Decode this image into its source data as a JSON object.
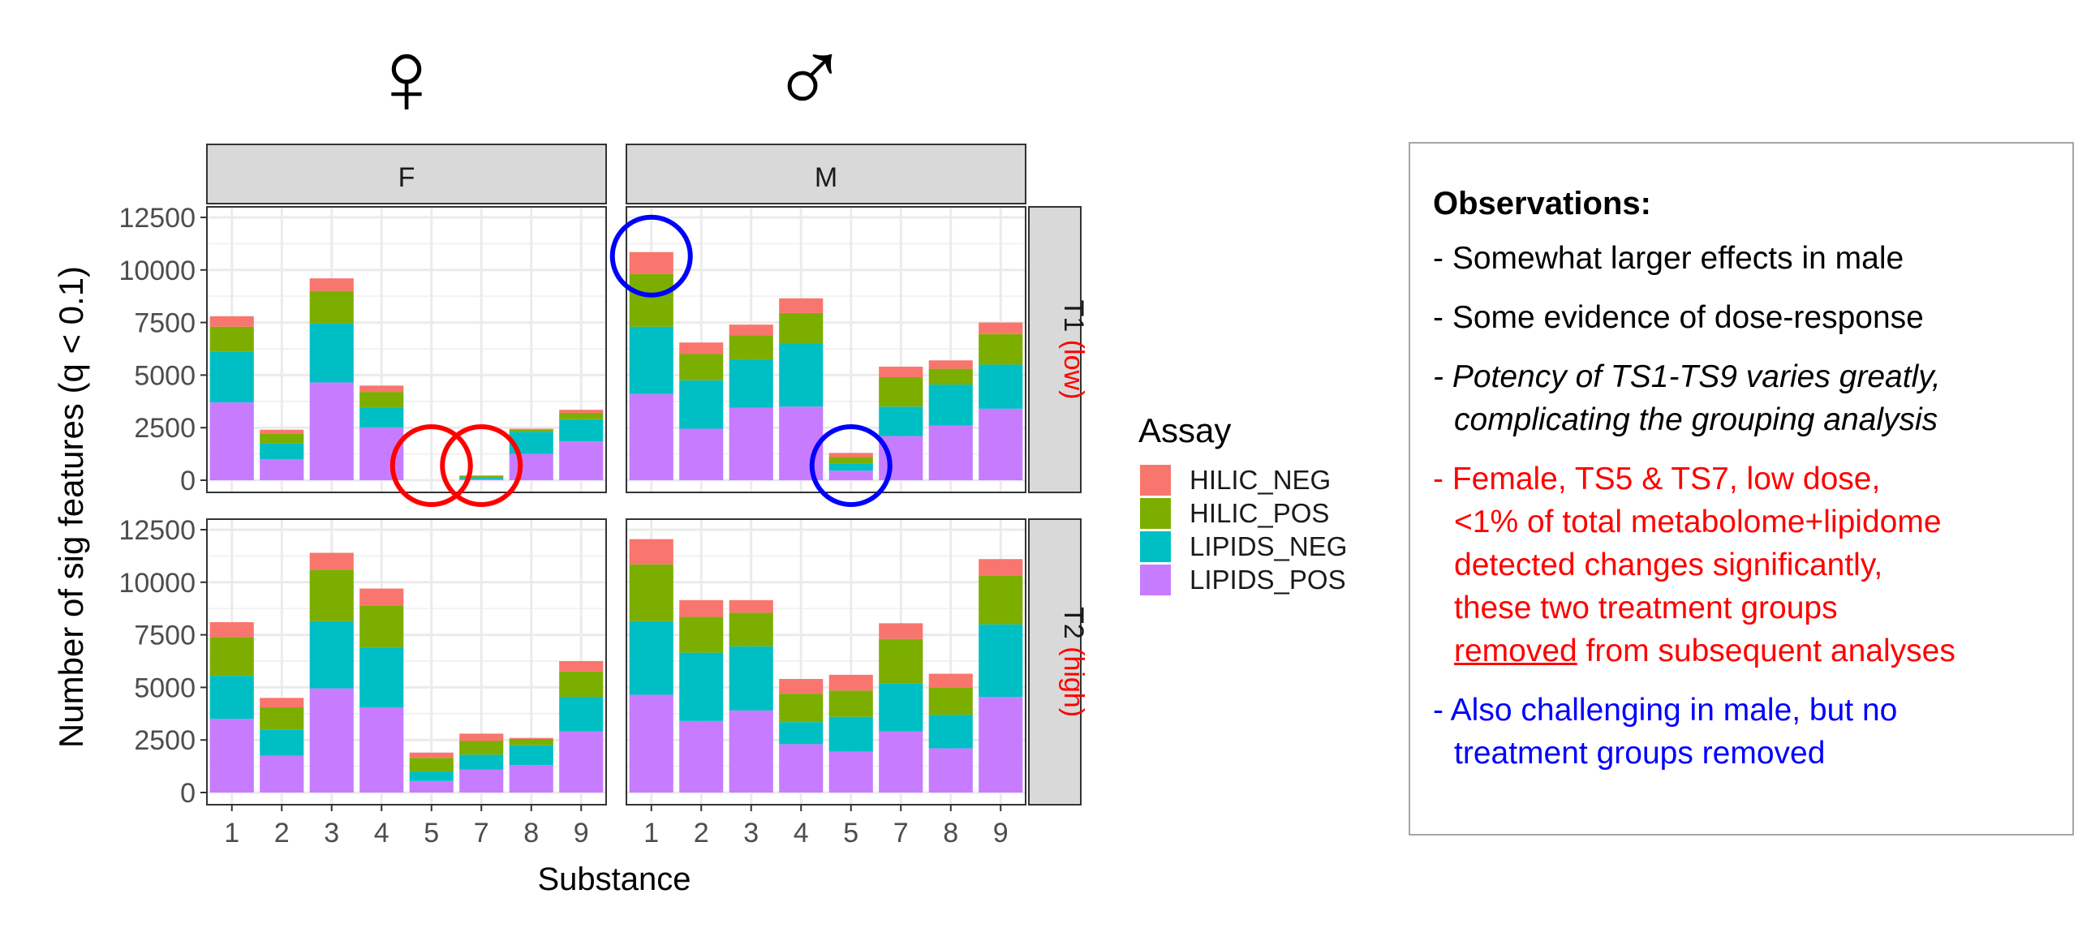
{
  "chart_data": {
    "type": "bar",
    "stacked": true,
    "xlabel": "Substance",
    "ylabel": "Number of sig features (q < 0.1)",
    "ylim": [
      0,
      12500
    ],
    "yticks": [
      "0",
      "2500",
      "5000",
      "7500",
      "10000",
      "12500"
    ],
    "ytick_values": [
      0,
      2500,
      5000,
      7500,
      10000,
      12500
    ],
    "grid": true,
    "legend": {
      "title": "Assay",
      "placement": "right",
      "entries": [
        {
          "label": "HILIC_NEG",
          "color": "#F8766D"
        },
        {
          "label": "HILIC_POS",
          "color": "#7CAE00"
        },
        {
          "label": "LIPIDS_NEG",
          "color": "#00BFC4"
        },
        {
          "label": "LIPIDS_POS",
          "color": "#C77CFF"
        }
      ]
    },
    "stack_order": [
      "LIPIDS_POS",
      "LIPIDS_NEG",
      "HILIC_POS",
      "HILIC_NEG"
    ],
    "column_facets": [
      {
        "strip": "F",
        "symbol": "♀",
        "categories": [
          "1",
          "2",
          "3",
          "4",
          "5",
          "7",
          "8",
          "9"
        ]
      },
      {
        "strip": "M",
        "symbol": "♂",
        "categories": [
          "1",
          "2",
          "3",
          "4",
          "5",
          "7",
          "8",
          "9"
        ]
      }
    ],
    "row_facets": [
      {
        "strip_main": "T1",
        "strip_sub": "(low)"
      },
      {
        "strip_main": "T2",
        "strip_sub": "(high)"
      }
    ],
    "panels": [
      {
        "col": "F",
        "row": "T1",
        "series": [
          {
            "name": "LIPIDS_POS",
            "values": [
              3700,
              1000,
              4650,
              2500,
              0,
              50,
              1250,
              1850
            ]
          },
          {
            "name": "LIPIDS_NEG",
            "values": [
              2400,
              750,
              2800,
              950,
              0,
              70,
              1050,
              1050
            ]
          },
          {
            "name": "HILIC_POS",
            "values": [
              1200,
              450,
              1550,
              750,
              0,
              80,
              100,
              300
            ]
          },
          {
            "name": "HILIC_NEG",
            "values": [
              500,
              200,
              600,
              300,
              0,
              30,
              50,
              150
            ]
          }
        ]
      },
      {
        "col": "M",
        "row": "T1",
        "series": [
          {
            "name": "LIPIDS_POS",
            "values": [
              4100,
              2450,
              3450,
              3500,
              450,
              2100,
              2600,
              3400
            ]
          },
          {
            "name": "LIPIDS_NEG",
            "values": [
              3200,
              2300,
              2300,
              3000,
              350,
              1400,
              1950,
              2100
            ]
          },
          {
            "name": "HILIC_POS",
            "values": [
              2500,
              1250,
              1150,
              1450,
              300,
              1400,
              750,
              1450
            ]
          },
          {
            "name": "HILIC_NEG",
            "values": [
              1050,
              550,
              500,
              700,
              200,
              500,
              400,
              550
            ]
          }
        ]
      },
      {
        "col": "F",
        "row": "T2",
        "series": [
          {
            "name": "LIPIDS_POS",
            "values": [
              3500,
              1750,
              4950,
              4050,
              550,
              1100,
              1300,
              2900
            ]
          },
          {
            "name": "LIPIDS_NEG",
            "values": [
              2050,
              1250,
              3200,
              2850,
              450,
              700,
              950,
              1650
            ]
          },
          {
            "name": "HILIC_POS",
            "values": [
              1850,
              1050,
              2450,
              2000,
              650,
              650,
              300,
              1200
            ]
          },
          {
            "name": "HILIC_NEG",
            "values": [
              700,
              450,
              800,
              800,
              250,
              350,
              50,
              500
            ]
          }
        ]
      },
      {
        "col": "M",
        "row": "T2",
        "series": [
          {
            "name": "LIPIDS_POS",
            "values": [
              4650,
              3400,
              3900,
              2300,
              1950,
              2900,
              2100,
              4550
            ]
          },
          {
            "name": "LIPIDS_NEG",
            "values": [
              3500,
              3250,
              3050,
              1050,
              1650,
              2300,
              1600,
              3450
            ]
          },
          {
            "name": "HILIC_POS",
            "values": [
              2700,
              1700,
              1600,
              1350,
              1250,
              2100,
              1300,
              2300
            ]
          },
          {
            "name": "HILIC_NEG",
            "values": [
              1200,
              800,
              600,
              700,
              750,
              750,
              650,
              800
            ]
          }
        ]
      }
    ],
    "annotations": {
      "circles": [
        {
          "panel": "F-T1",
          "category": "5",
          "color": "#ff0000"
        },
        {
          "panel": "F-T1",
          "category": "7",
          "color": "#ff0000"
        },
        {
          "panel": "M-T1",
          "category": "1",
          "color": "#0000ff"
        },
        {
          "panel": "M-T1",
          "category": "5",
          "color": "#0000ff"
        }
      ]
    }
  },
  "observations": {
    "title": "Observations:",
    "item1": "- Somewhat larger effects in male",
    "item2": "- Some evidence of dose-response",
    "item3_line1": "- Potency of TS1-TS9 varies greatly,",
    "item3_line2": "complicating the grouping analysis",
    "item4_line1": "- Female, TS5 & TS7, low dose,",
    "item4_line2": "<1% of total metabolome+lipidome",
    "item4_line3": "detected changes significantly,",
    "item4_line4": "these two treatment groups",
    "item4_line5_underlined": "removed",
    "item4_line5_rest": " from subsequent analyses",
    "item5_line1": "- Also challenging in male, but no",
    "item5_line2": "treatment groups removed"
  },
  "colors": {
    "HILIC_NEG": "#F8766D",
    "HILIC_POS": "#7CAE00",
    "LIPIDS_NEG": "#00BFC4",
    "LIPIDS_POS": "#C77CFF",
    "red_annotation": "#ff0000",
    "blue_annotation": "#0000ff",
    "strip_fill": "#d9d9d9",
    "grid": "#ebebeb"
  }
}
